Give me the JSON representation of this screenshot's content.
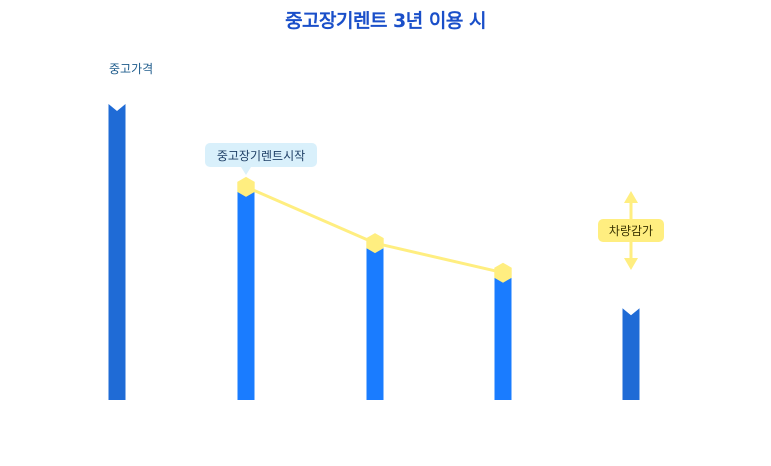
{
  "title": "중고장기렌트 3년 이용 시",
  "colors": {
    "bar_end": "#1f6bd6",
    "bar_mid": "#1a7cff",
    "line": "#ffee80",
    "callout_bg": "#d9f0fb",
    "reduction_bg": "#ffee80"
  },
  "chart_data": {
    "type": "bar",
    "title": "중고장기렌트 3년 이용 시",
    "categories": [
      "",
      "",
      "",
      "",
      ""
    ],
    "values": [
      100,
      72,
      53,
      43,
      31
    ],
    "series": [
      {
        "values": [
          100,
          72,
          53,
          43,
          31
        ]
      }
    ],
    "line_series": {
      "indices": [
        1,
        2,
        3
      ],
      "values": [
        72,
        53,
        43
      ]
    },
    "ylim": [
      0,
      100
    ],
    "grid": false,
    "annotations": [
      {
        "text": "중고가격",
        "target_index": 0
      },
      {
        "text": "중고장기렌트시작",
        "target_index": 1
      },
      {
        "text": "차량감가",
        "target_index": 4
      }
    ]
  }
}
